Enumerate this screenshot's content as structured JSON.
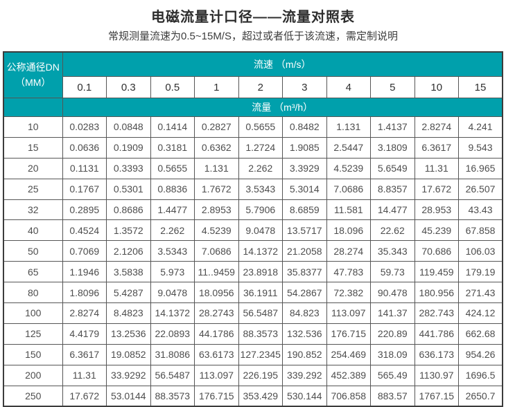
{
  "page": {
    "title": "电磁流量计口径——流量对照表",
    "subtitle": "常规测量流速为0.5~15M/S，超过或者低于该流速，需定制说明"
  },
  "colors": {
    "header_teal": "#00a0ac",
    "border": "#555555",
    "data_text": "#4d4d4d",
    "header_text": "#ffffff"
  },
  "table": {
    "corner_header": {
      "line1": "公称通径DN",
      "line2": "（MM）"
    },
    "velocity_header": "流速 （m/s）",
    "flow_header": "流量 （m³/h）",
    "velocities": [
      "0.1",
      "0.3",
      "0.5",
      "1",
      "2",
      "3",
      "4",
      "5",
      "10",
      "15"
    ],
    "rows": [
      {
        "dn": "10",
        "values": [
          "0.0283",
          "0.0848",
          "0.1414",
          "0.2827",
          "0.5655",
          "0.8482",
          "1.131",
          "1.4137",
          "2.8274",
          "4.241"
        ]
      },
      {
        "dn": "15",
        "values": [
          "0.0636",
          "0.1909",
          "0.3181",
          "0.6362",
          "1.2724",
          "1.9085",
          "2.5447",
          "3.1809",
          "6.3617",
          "9.543"
        ]
      },
      {
        "dn": "20",
        "values": [
          "0.1131",
          "0.3393",
          "0.5655",
          "1.131",
          "2.262",
          "3.3929",
          "4.5239",
          "5.6549",
          "11.31",
          "16.965"
        ]
      },
      {
        "dn": "25",
        "values": [
          "0.1767",
          "0.5301",
          "0.8836",
          "1.7672",
          "3.5343",
          "5.3014",
          "7.0686",
          "8.8357",
          "17.672",
          "26.507"
        ]
      },
      {
        "dn": "32",
        "values": [
          "0.2895",
          "0.8686",
          "1.4477",
          "2.8953",
          "5.7906",
          "8.6859",
          "11.581",
          "14.477",
          "28.953",
          "43.43"
        ]
      },
      {
        "dn": "40",
        "values": [
          "0.4524",
          "1.3572",
          "2.262",
          "4.5239",
          "9.0478",
          "13.5717",
          "18.096",
          "22.62",
          "45.239",
          "67.858"
        ]
      },
      {
        "dn": "50",
        "values": [
          "0.7069",
          "2.1206",
          "3.5343",
          "7.0686",
          "14.1372",
          "21.2058",
          "28.274",
          "35.343",
          "70.686",
          "106.03"
        ]
      },
      {
        "dn": "65",
        "values": [
          "1.1946",
          "3.5838",
          "5.973",
          "11..9459",
          "23.8918",
          "35.8377",
          "47.783",
          "59.73",
          "119.459",
          "179.19"
        ]
      },
      {
        "dn": "80",
        "values": [
          "1.8096",
          "5.4287",
          "9.0478",
          "18.0956",
          "36.1911",
          "54.2867",
          "72.382",
          "90.478",
          "180.956",
          "271.43"
        ]
      },
      {
        "dn": "100",
        "values": [
          "2.8274",
          "8.4823",
          "14.1372",
          "28.2743",
          "56.5487",
          "84.823",
          "113.097",
          "141.37",
          "282.743",
          "424.12"
        ]
      },
      {
        "dn": "125",
        "values": [
          "4.4179",
          "13.2536",
          "22.0893",
          "44.1786",
          "88.3573",
          "132.536",
          "176.715",
          "220.89",
          "441.786",
          "662.68"
        ]
      },
      {
        "dn": "150",
        "values": [
          "6.3617",
          "19.0852",
          "31.8086",
          "63.6173",
          "127.2345",
          "190.852",
          "254.469",
          "318.09",
          "636.173",
          "954.26"
        ]
      },
      {
        "dn": "200",
        "values": [
          "11.31",
          "33.9292",
          "56.5487",
          "113.097",
          "226.195",
          "339.292",
          "452.389",
          "565.49",
          "1130.97",
          "1696.5"
        ]
      },
      {
        "dn": "250",
        "values": [
          "17.672",
          "53.0144",
          "88.3573",
          "176.715",
          "353.429",
          "530.144",
          "706.858",
          "883.57",
          "1767.15",
          "2650.7"
        ]
      }
    ]
  }
}
